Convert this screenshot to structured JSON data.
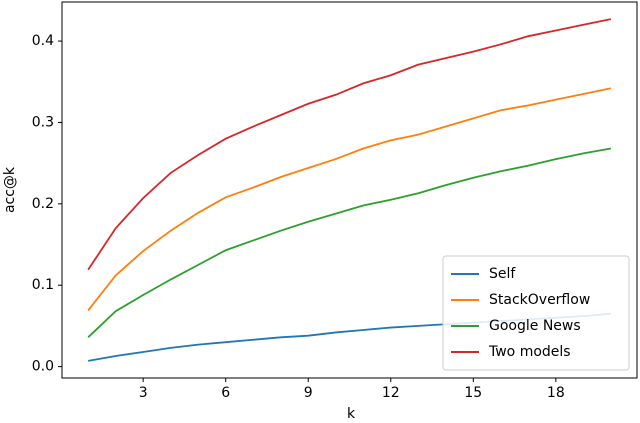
{
  "chart_data": {
    "type": "line",
    "xlabel": "k",
    "ylabel": "acc@k",
    "x": [
      1,
      2,
      3,
      4,
      5,
      6,
      7,
      8,
      9,
      10,
      11,
      12,
      13,
      14,
      15,
      16,
      17,
      18,
      19,
      20
    ],
    "series": [
      {
        "name": "Self",
        "color": "#1f77b4",
        "values": [
          0.007,
          0.013,
          0.018,
          0.023,
          0.027,
          0.03,
          0.033,
          0.036,
          0.038,
          0.042,
          0.045,
          0.048,
          0.05,
          0.052,
          0.054,
          0.056,
          0.058,
          0.06,
          0.062,
          0.065
        ]
      },
      {
        "name": "StackOverflow",
        "color": "#ff7f0e",
        "values": [
          0.069,
          0.112,
          0.142,
          0.167,
          0.189,
          0.208,
          0.22,
          0.233,
          0.244,
          0.255,
          0.268,
          0.278,
          0.285,
          0.295,
          0.305,
          0.315,
          0.321,
          0.328,
          0.335,
          0.342
        ]
      },
      {
        "name": "Google News",
        "color": "#2ca02c",
        "values": [
          0.036,
          0.068,
          0.088,
          0.107,
          0.125,
          0.143,
          0.155,
          0.167,
          0.178,
          0.188,
          0.198,
          0.205,
          0.213,
          0.223,
          0.232,
          0.24,
          0.247,
          0.255,
          0.262,
          0.268
        ]
      },
      {
        "name": "Two models",
        "color": "#d62728",
        "values": [
          0.119,
          0.17,
          0.207,
          0.238,
          0.26,
          0.28,
          0.295,
          0.309,
          0.323,
          0.334,
          0.348,
          0.358,
          0.371,
          0.379,
          0.387,
          0.396,
          0.406,
          0.413,
          0.42,
          0.427
        ]
      }
    ],
    "xlim": [
      0.05,
      20.95
    ],
    "xticks": [
      3,
      6,
      9,
      12,
      15,
      18
    ],
    "ylim": [
      -0.014,
      0.448
    ],
    "yticks": [
      {
        "value": 0,
        "label": "0.0"
      },
      0.1,
      0.2,
      0.3,
      0.4
    ],
    "legend": "lower right",
    "grid": false
  }
}
